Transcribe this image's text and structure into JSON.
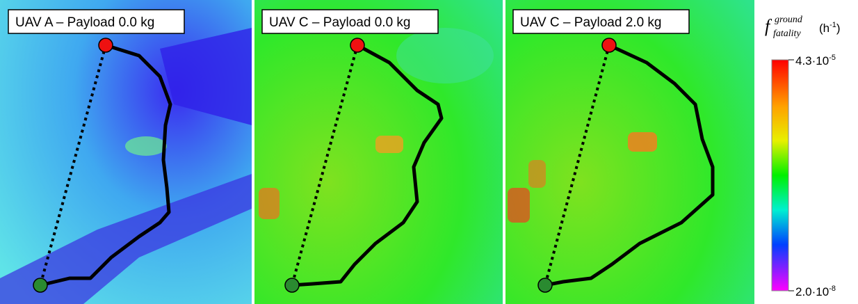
{
  "panels": [
    {
      "title": "UAV A – Payload 0.0 kg"
    },
    {
      "title": "UAV C – Payload 0.0 kg"
    },
    {
      "title": "UAV C – Payload 2.0 kg"
    }
  ],
  "colorbar": {
    "symbol": "f",
    "superscript": "ground",
    "subscript": "fatality",
    "unit_open": "(h",
    "unit_exponent": "-1",
    "unit_close": ")",
    "scale": "log",
    "max": {
      "mantissa": "4.3·10",
      "exponent": "-5"
    },
    "min": {
      "mantissa": "2.0·10",
      "exponent": "-8"
    }
  }
}
